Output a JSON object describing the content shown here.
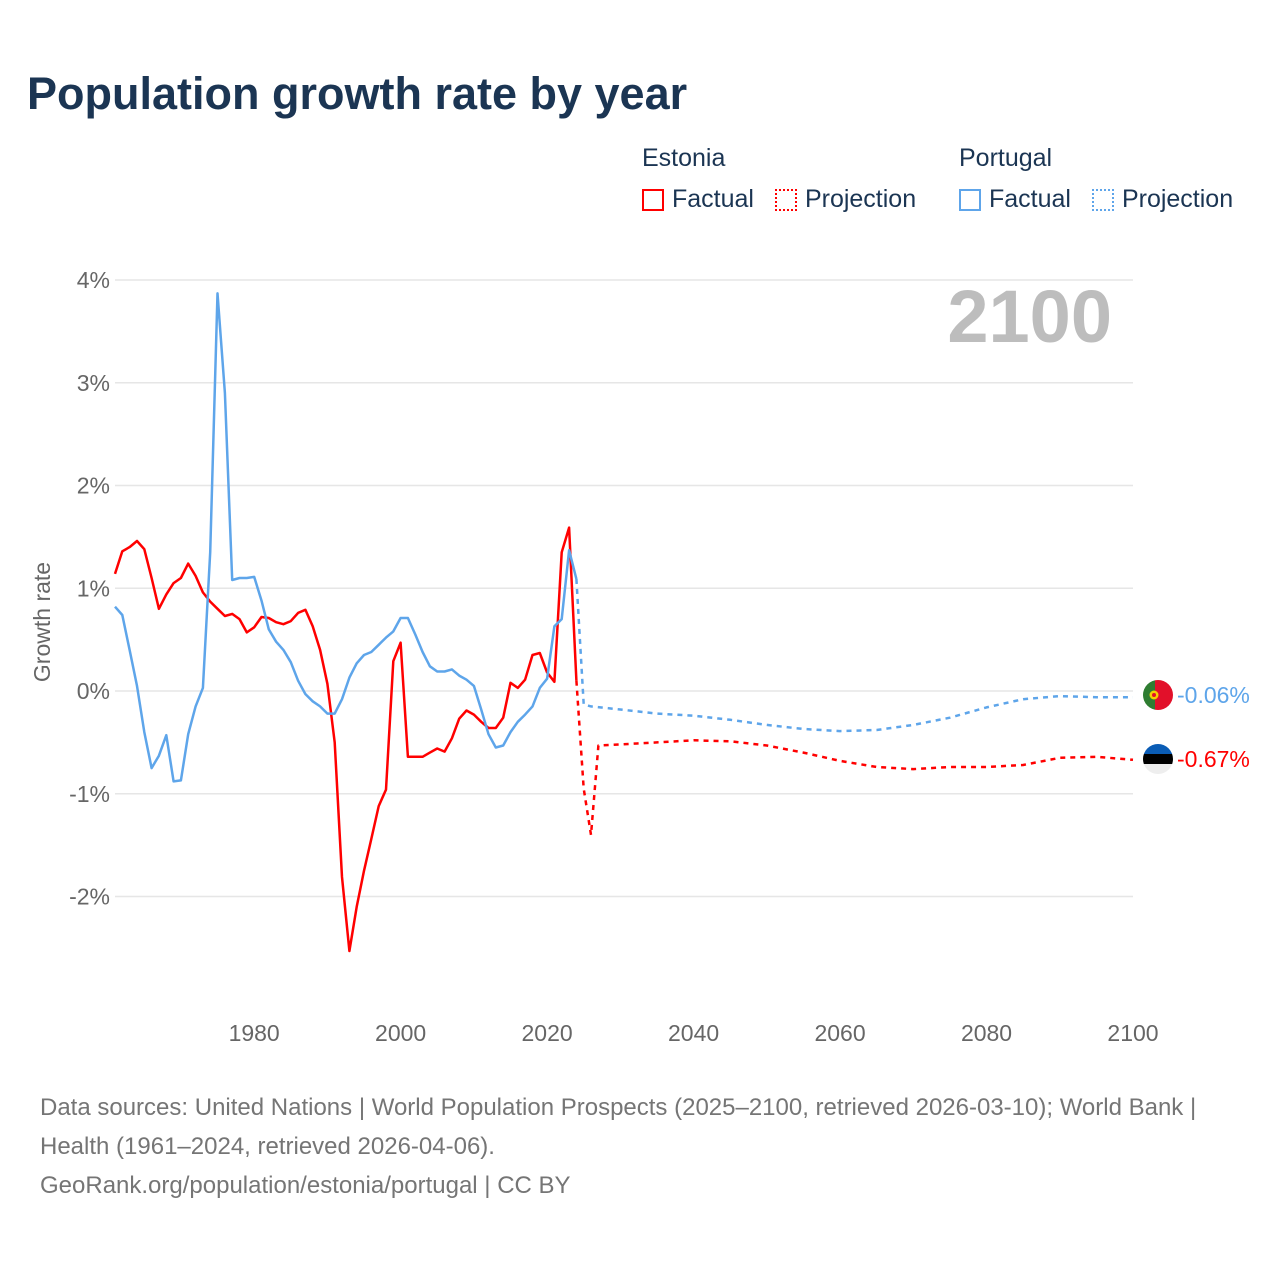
{
  "title": "Population growth rate by year",
  "legend": [
    {
      "country": "Estonia",
      "factual_label": "Factual",
      "projection_label": "Projection",
      "color": "#ff0000"
    },
    {
      "country": "Portugal",
      "factual_label": "Factual",
      "projection_label": "Projection",
      "color": "#5ea5ea"
    }
  ],
  "year_label": "2100",
  "end_labels": {
    "portugal": "-0.06%",
    "estonia": "-0.67%"
  },
  "footer": {
    "sources": "Data sources: United Nations | World Population Prospects (2025–2100, retrieved 2026-03-10); World Bank | Health (1961–2024, retrieved 2026-04-06).",
    "credit": "GeoRank.org/population/estonia/portugal | CC BY"
  },
  "chart_data": {
    "type": "line",
    "title": "Population growth rate by year",
    "xlabel": "",
    "ylabel": "Growth rate",
    "xlim": [
      1961,
      2100
    ],
    "ylim": [
      -3,
      4
    ],
    "yticks": [
      4,
      3,
      2,
      1,
      0,
      -1,
      -2
    ],
    "ytick_labels": [
      "4%",
      "3%",
      "2%",
      "1%",
      "0%",
      "-1%",
      "-2%"
    ],
    "xticks": [
      1980,
      2000,
      2020,
      2040,
      2060,
      2080,
      2100
    ],
    "xtick_labels": [
      "1980",
      "2000",
      "2020",
      "2040",
      "2060",
      "2080",
      "2100"
    ],
    "grid": true,
    "legend_position": "top-right",
    "series": [
      {
        "name": "Estonia Factual",
        "color": "#ff0000",
        "dash": false,
        "x": [
          1961,
          1962,
          1963,
          1964,
          1965,
          1966,
          1967,
          1968,
          1969,
          1970,
          1971,
          1972,
          1973,
          1974,
          1975,
          1976,
          1977,
          1978,
          1979,
          1980,
          1981,
          1982,
          1983,
          1984,
          1985,
          1986,
          1987,
          1988,
          1989,
          1990,
          1991,
          1992,
          1993,
          1994,
          1995,
          1996,
          1997,
          1998,
          1999,
          2000,
          2001,
          2002,
          2003,
          2004,
          2005,
          2006,
          2007,
          2008,
          2009,
          2010,
          2011,
          2012,
          2013,
          2014,
          2015,
          2016,
          2017,
          2018,
          2019,
          2020,
          2021,
          2022,
          2023,
          2024
        ],
        "y": [
          1.14,
          1.36,
          1.4,
          1.46,
          1.38,
          1.1,
          0.8,
          0.94,
          1.05,
          1.1,
          1.24,
          1.12,
          0.96,
          0.87,
          0.8,
          0.73,
          0.75,
          0.7,
          0.57,
          0.62,
          0.72,
          0.71,
          0.67,
          0.65,
          0.68,
          0.76,
          0.79,
          0.63,
          0.4,
          0.07,
          -0.5,
          -1.81,
          -2.53,
          -2.1,
          -1.75,
          -1.44,
          -1.12,
          -0.96,
          0.29,
          0.47,
          -0.64,
          -0.64,
          -0.64,
          -0.6,
          -0.56,
          -0.59,
          -0.46,
          -0.27,
          -0.19,
          -0.23,
          -0.3,
          -0.36,
          -0.36,
          -0.26,
          0.08,
          0.03,
          0.11,
          0.35,
          0.37,
          0.18,
          0.09,
          1.35,
          1.59,
          0.1
        ]
      },
      {
        "name": "Estonia Projection",
        "color": "#ff0000",
        "dash": true,
        "x": [
          2024,
          2025,
          2026,
          2027,
          2030,
          2035,
          2040,
          2045,
          2050,
          2055,
          2060,
          2065,
          2070,
          2075,
          2080,
          2085,
          2090,
          2095,
          2100
        ],
        "y": [
          0.1,
          -0.95,
          -1.4,
          -0.53,
          -0.52,
          -0.5,
          -0.48,
          -0.49,
          -0.53,
          -0.6,
          -0.68,
          -0.74,
          -0.76,
          -0.74,
          -0.74,
          -0.72,
          -0.65,
          -0.64,
          -0.67
        ]
      },
      {
        "name": "Portugal Factual",
        "color": "#5ea5ea",
        "dash": false,
        "x": [
          1961,
          1962,
          1963,
          1964,
          1965,
          1966,
          1967,
          1968,
          1969,
          1970,
          1971,
          1972,
          1973,
          1974,
          1975,
          1976,
          1977,
          1978,
          1979,
          1980,
          1981,
          1982,
          1983,
          1984,
          1985,
          1986,
          1987,
          1988,
          1989,
          1990,
          1991,
          1992,
          1993,
          1994,
          1995,
          1996,
          1997,
          1998,
          1999,
          2000,
          2001,
          2002,
          2003,
          2004,
          2005,
          2006,
          2007,
          2008,
          2009,
          2010,
          2011,
          2012,
          2013,
          2014,
          2015,
          2016,
          2017,
          2018,
          2019,
          2020,
          2021,
          2022,
          2023,
          2024
        ],
        "y": [
          0.82,
          0.74,
          0.4,
          0.05,
          -0.4,
          -0.75,
          -0.63,
          -0.43,
          -0.88,
          -0.87,
          -0.42,
          -0.15,
          0.03,
          1.35,
          3.87,
          2.9,
          1.08,
          1.1,
          1.1,
          1.11,
          0.88,
          0.6,
          0.48,
          0.4,
          0.28,
          0.1,
          -0.03,
          -0.1,
          -0.15,
          -0.22,
          -0.22,
          -0.08,
          0.13,
          0.27,
          0.35,
          0.38,
          0.45,
          0.52,
          0.58,
          0.71,
          0.71,
          0.55,
          0.38,
          0.24,
          0.19,
          0.19,
          0.21,
          0.15,
          0.11,
          0.05,
          -0.18,
          -0.42,
          -0.55,
          -0.53,
          -0.4,
          -0.3,
          -0.23,
          -0.15,
          0.03,
          0.12,
          0.63,
          0.7,
          1.37,
          1.09
        ]
      },
      {
        "name": "Portugal Projection",
        "color": "#5ea5ea",
        "dash": true,
        "x": [
          2024,
          2025,
          2026,
          2030,
          2035,
          2040,
          2045,
          2050,
          2055,
          2060,
          2065,
          2070,
          2075,
          2080,
          2085,
          2090,
          2095,
          2100
        ],
        "y": [
          1.09,
          -0.13,
          -0.15,
          -0.18,
          -0.22,
          -0.24,
          -0.28,
          -0.33,
          -0.37,
          -0.39,
          -0.38,
          -0.33,
          -0.26,
          -0.16,
          -0.08,
          -0.05,
          -0.06,
          -0.06
        ]
      }
    ]
  }
}
